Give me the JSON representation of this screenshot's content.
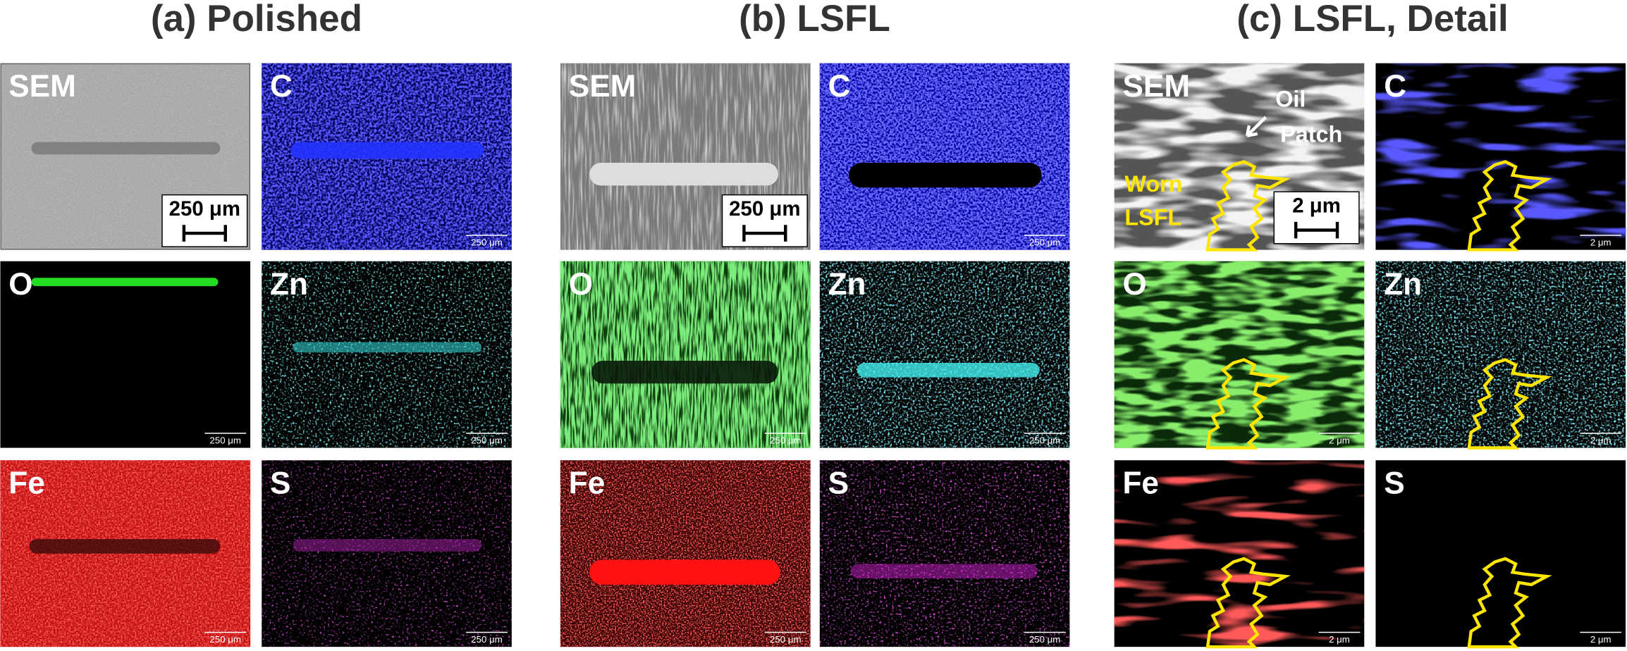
{
  "groups": [
    {
      "title": "(a) Polished",
      "scale_bar": "250 μm",
      "panels": [
        "SEM",
        "C",
        "O",
        "Zn",
        "Fe",
        "S"
      ]
    },
    {
      "title": "(b) LSFL",
      "scale_bar": "250 μm",
      "panels": [
        "SEM",
        "C",
        "O",
        "Zn",
        "Fe",
        "S"
      ]
    },
    {
      "title": "(c) LSFL, Detail",
      "scale_bar": "2 μm",
      "panels": [
        "SEM",
        "C",
        "O",
        "Zn",
        "Fe",
        "S"
      ],
      "annotations": {
        "oil_patch": [
          "Oil",
          "Patch"
        ],
        "worn_lsfl": [
          "Worn",
          "LSFL"
        ]
      }
    }
  ]
}
